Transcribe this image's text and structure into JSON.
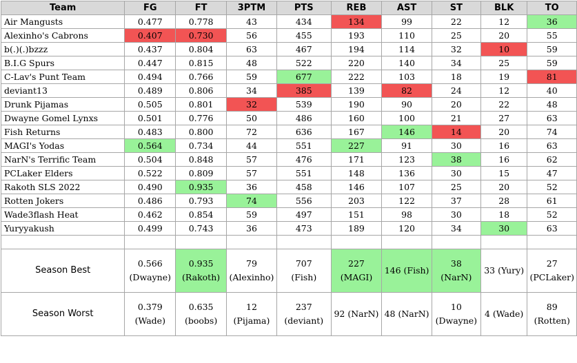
{
  "columns": [
    "Team",
    "FG",
    "FT",
    "3PTM",
    "PTS",
    "REB",
    "AST",
    "ST",
    "BLK",
    "TO"
  ],
  "colors": {
    "best": "#99f299",
    "worst": "#f25454",
    "header": "#d9d9d9"
  },
  "rows": [
    {
      "team": "Air Mangusts",
      "values": [
        "0.477",
        "0.778",
        "43",
        "434",
        "134",
        "99",
        "22",
        "12",
        "36"
      ],
      "hl": [
        "",
        "",
        "",
        "",
        "worst",
        "",
        "",
        "",
        "best"
      ]
    },
    {
      "team": "Alexinho's Cabrons",
      "values": [
        "0.407",
        "0.730",
        "56",
        "455",
        "193",
        "110",
        "25",
        "20",
        "55"
      ],
      "hl": [
        "worst",
        "worst",
        "",
        "",
        "",
        "",
        "",
        "",
        ""
      ]
    },
    {
      "team": "b(.)(.)bzzz",
      "values": [
        "0.437",
        "0.804",
        "63",
        "467",
        "194",
        "114",
        "32",
        "10",
        "59"
      ],
      "hl": [
        "",
        "",
        "",
        "",
        "",
        "",
        "",
        "worst",
        ""
      ]
    },
    {
      "team": "B.I.G Spurs",
      "values": [
        "0.447",
        "0.815",
        "48",
        "522",
        "220",
        "140",
        "34",
        "25",
        "59"
      ],
      "hl": [
        "",
        "",
        "",
        "",
        "",
        "",
        "",
        "",
        ""
      ]
    },
    {
      "team": "C-Lav's Punt Team",
      "values": [
        "0.494",
        "0.766",
        "59",
        "677",
        "222",
        "103",
        "18",
        "19",
        "81"
      ],
      "hl": [
        "",
        "",
        "",
        "best",
        "",
        "",
        "",
        "",
        "worst"
      ]
    },
    {
      "team": "deviant13",
      "values": [
        "0.489",
        "0.806",
        "34",
        "385",
        "139",
        "82",
        "24",
        "12",
        "40"
      ],
      "hl": [
        "",
        "",
        "",
        "worst",
        "",
        "worst",
        "",
        "",
        ""
      ]
    },
    {
      "team": "Drunk Pijamas",
      "values": [
        "0.505",
        "0.801",
        "32",
        "539",
        "190",
        "90",
        "20",
        "22",
        "48"
      ],
      "hl": [
        "",
        "",
        "worst",
        "",
        "",
        "",
        "",
        "",
        ""
      ]
    },
    {
      "team": "Dwayne Gomel Lynxs",
      "values": [
        "0.501",
        "0.776",
        "50",
        "486",
        "160",
        "100",
        "21",
        "27",
        "63"
      ],
      "hl": [
        "",
        "",
        "",
        "",
        "",
        "",
        "",
        "",
        ""
      ]
    },
    {
      "team": "Fish Returns",
      "values": [
        "0.483",
        "0.800",
        "72",
        "636",
        "167",
        "146",
        "14",
        "20",
        "74"
      ],
      "hl": [
        "",
        "",
        "",
        "",
        "",
        "best",
        "worst",
        "",
        ""
      ]
    },
    {
      "team": "MAGI's Yodas",
      "values": [
        "0.564",
        "0.734",
        "44",
        "551",
        "227",
        "91",
        "30",
        "16",
        "63"
      ],
      "hl": [
        "best",
        "",
        "",
        "",
        "best",
        "",
        "",
        "",
        ""
      ]
    },
    {
      "team": "NarN's Terrific Team",
      "values": [
        "0.504",
        "0.848",
        "57",
        "476",
        "171",
        "123",
        "38",
        "16",
        "62"
      ],
      "hl": [
        "",
        "",
        "",
        "",
        "",
        "",
        "best",
        "",
        ""
      ]
    },
    {
      "team": "PCLaker Elders",
      "values": [
        "0.522",
        "0.809",
        "57",
        "551",
        "148",
        "136",
        "30",
        "15",
        "47"
      ],
      "hl": [
        "",
        "",
        "",
        "",
        "",
        "",
        "",
        "",
        ""
      ]
    },
    {
      "team": "Rakoth SLS 2022",
      "values": [
        "0.490",
        "0.935",
        "36",
        "458",
        "146",
        "107",
        "25",
        "20",
        "52"
      ],
      "hl": [
        "",
        "best",
        "",
        "",
        "",
        "",
        "",
        "",
        ""
      ]
    },
    {
      "team": "Rotten Jokers",
      "values": [
        "0.486",
        "0.793",
        "74",
        "556",
        "203",
        "122",
        "37",
        "28",
        "61"
      ],
      "hl": [
        "",
        "",
        "best",
        "",
        "",
        "",
        "",
        "",
        ""
      ]
    },
    {
      "team": "Wade3flash Heat",
      "values": [
        "0.462",
        "0.854",
        "59",
        "497",
        "151",
        "98",
        "30",
        "18",
        "52"
      ],
      "hl": [
        "",
        "",
        "",
        "",
        "",
        "",
        "",
        "",
        ""
      ]
    },
    {
      "team": "Yuryyakush",
      "values": [
        "0.499",
        "0.743",
        "36",
        "473",
        "189",
        "120",
        "34",
        "30",
        "63"
      ],
      "hl": [
        "",
        "",
        "",
        "",
        "",
        "",
        "",
        "best",
        ""
      ]
    }
  ],
  "season_best": {
    "label": "Season Best",
    "cells": [
      {
        "lines": [
          "0.566",
          "(Dwayne)"
        ],
        "hl": ""
      },
      {
        "lines": [
          "0.935",
          "(Rakoth)"
        ],
        "hl": "best"
      },
      {
        "lines": [
          "79",
          "(Alexinho)"
        ],
        "hl": ""
      },
      {
        "lines": [
          "707",
          "(Fish)"
        ],
        "hl": ""
      },
      {
        "lines": [
          "227",
          "(MAGI)"
        ],
        "hl": "best"
      },
      {
        "lines": [
          "146 (Fish)"
        ],
        "hl": "best"
      },
      {
        "lines": [
          "38 (NarN)"
        ],
        "hl": "best"
      },
      {
        "lines": [
          "33 (Yury)"
        ],
        "hl": ""
      },
      {
        "lines": [
          "27",
          "(PCLaker)"
        ],
        "hl": ""
      }
    ]
  },
  "season_worst": {
    "label": "Season Worst",
    "cells": [
      {
        "lines": [
          "0.379",
          "(Wade)"
        ],
        "hl": ""
      },
      {
        "lines": [
          "0.635",
          "(boobs)"
        ],
        "hl": ""
      },
      {
        "lines": [
          "12",
          "(Pijama)"
        ],
        "hl": ""
      },
      {
        "lines": [
          "237",
          "(deviant)"
        ],
        "hl": ""
      },
      {
        "lines": [
          "92 (NarN)"
        ],
        "hl": ""
      },
      {
        "lines": [
          "48 (NarN)"
        ],
        "hl": ""
      },
      {
        "lines": [
          "10",
          "(Dwayne)"
        ],
        "hl": ""
      },
      {
        "lines": [
          "4 (Wade)"
        ],
        "hl": ""
      },
      {
        "lines": [
          "89",
          "(Rotten)"
        ],
        "hl": ""
      }
    ]
  }
}
